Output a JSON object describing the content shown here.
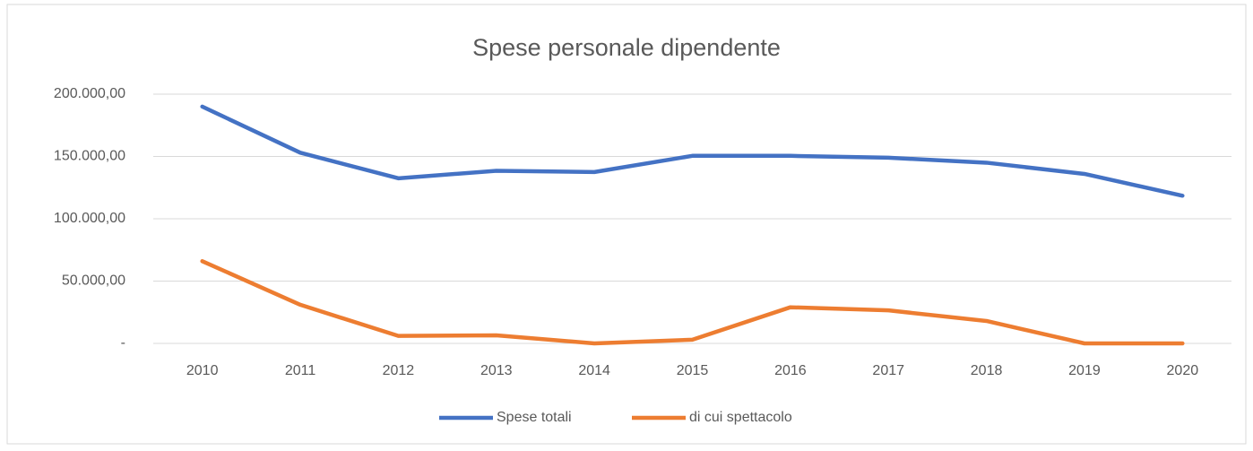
{
  "chart_data": {
    "type": "line",
    "title": "Spese personale dipendente",
    "categories": [
      "2010",
      "2011",
      "2012",
      "2013",
      "2014",
      "2015",
      "2016",
      "2017",
      "2018",
      "2019",
      "2020"
    ],
    "series": [
      {
        "name": "Spese totali",
        "color": "#4472c4",
        "values": [
          190000,
          153000,
          132500,
          138500,
          137500,
          150500,
          150500,
          149000,
          145000,
          136000,
          118500
        ]
      },
      {
        "name": "di cui spettacolo",
        "color": "#ed7d31",
        "values": [
          66000,
          31000,
          6000,
          6500,
          0,
          3000,
          29000,
          26500,
          18000,
          0,
          0
        ]
      }
    ],
    "ylim": [
      0,
      200000
    ],
    "yticks": [
      {
        "value": 0,
        "label": "-"
      },
      {
        "value": 50000,
        "label": "50.000,00"
      },
      {
        "value": 100000,
        "label": "100.000,00"
      },
      {
        "value": 150000,
        "label": "150.000,00"
      },
      {
        "value": 200000,
        "label": "200.000,00"
      }
    ],
    "grid": true,
    "legend": "bottom"
  }
}
